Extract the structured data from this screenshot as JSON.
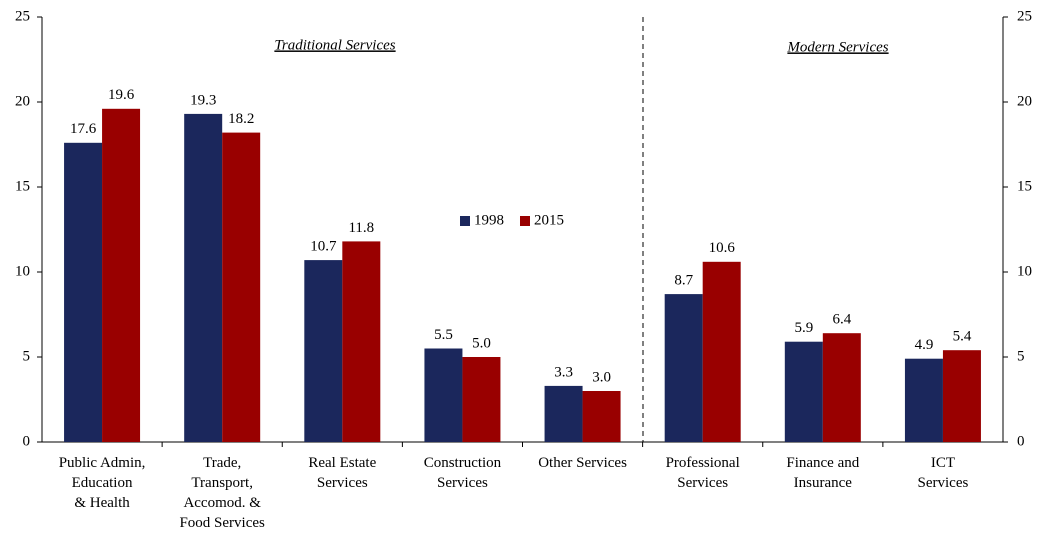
{
  "chart_data": {
    "type": "bar",
    "annotations": [
      "Traditional Services",
      "Modern Services"
    ],
    "categories": [
      "Public Admin,\nEducation\n& Health",
      "Trade,\nTransport,\nAccomod. &\nFood Services",
      "Real Estate\nServices",
      "Construction\nServices",
      "Other Services",
      "Professional\nServices",
      "Finance and\nInsurance",
      "ICT\nServices"
    ],
    "series": [
      {
        "name": "1998",
        "color": "#1b275c",
        "values": [
          17.6,
          19.3,
          10.7,
          5.5,
          3.3,
          8.7,
          5.9,
          4.9
        ],
        "value_labels": [
          "17.6",
          "19.3",
          "10.7",
          "5.5",
          "3.3",
          "8.7",
          "5.9",
          "4.9"
        ]
      },
      {
        "name": "2015",
        "color": "#990000",
        "values": [
          19.6,
          18.2,
          11.8,
          5,
          3,
          10.6,
          6.4,
          5.4
        ],
        "value_labels": [
          "19.6",
          "18.2",
          "11.8",
          "5.0",
          "3.0",
          "10.6",
          "6.4",
          "5.4"
        ]
      }
    ],
    "ylim": [
      0,
      25
    ],
    "yticks": [
      0,
      5,
      10,
      15,
      20,
      25
    ],
    "y2lim": [
      0,
      25
    ],
    "y2ticks": [
      0,
      5,
      10,
      15,
      20,
      25
    ],
    "grid": false,
    "legend": "center"
  }
}
